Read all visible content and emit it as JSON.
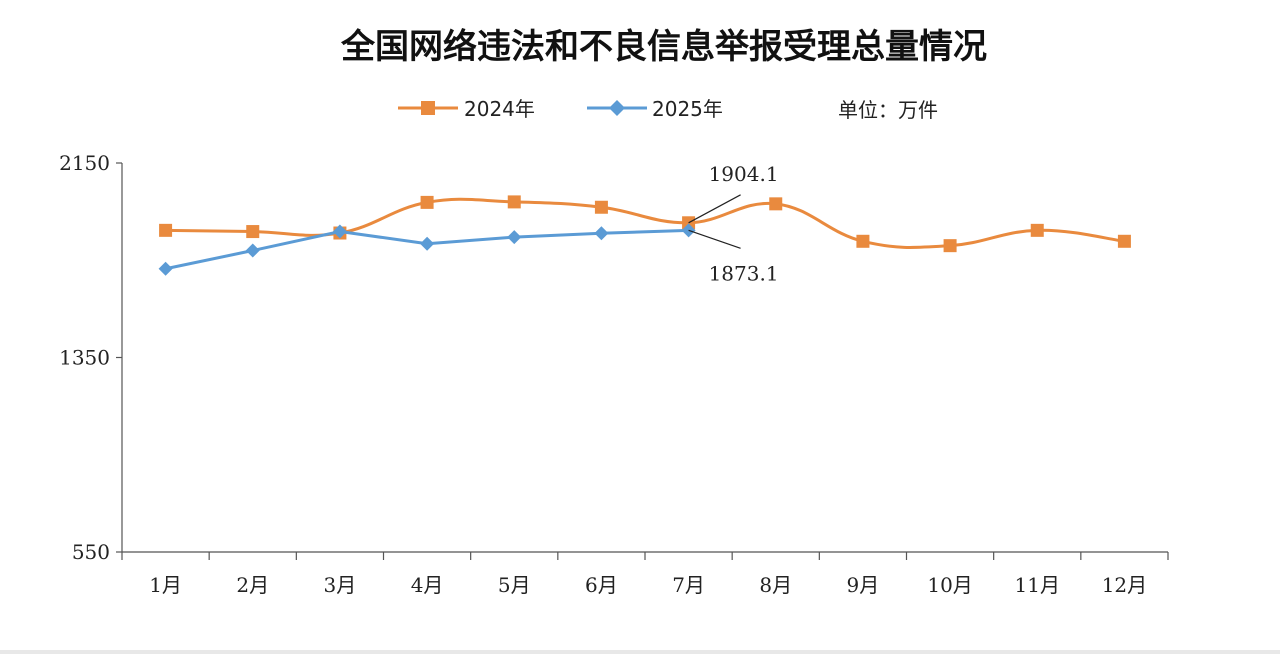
{
  "chart_data": {
    "type": "line",
    "title": "全国网络违法和不良信息举报受理总量情况",
    "unit_label": "单位：万件",
    "categories": [
      "1月",
      "2月",
      "3月",
      "4月",
      "5月",
      "6月",
      "7月",
      "8月",
      "9月",
      "10月",
      "11月",
      "12月"
    ],
    "ylim": [
      550,
      2150
    ],
    "yticks": [
      550,
      1350,
      2150
    ],
    "grid": false,
    "legend_position": "top",
    "series": [
      {
        "name": "2024年",
        "color": "#E98A3E",
        "marker": "square",
        "smooth": true,
        "values": [
          1873,
          1868,
          1862,
          1988,
          1990,
          1968,
          1904.1,
          1982,
          1828,
          1810,
          1873,
          1828
        ]
      },
      {
        "name": "2025年",
        "color": "#5B9BD5",
        "marker": "diamond",
        "smooth": false,
        "values": [
          1715,
          1790,
          1868,
          1818,
          1845,
          1861,
          1873.1,
          null,
          null,
          null,
          null,
          null
        ]
      }
    ],
    "annotations": [
      {
        "text": "1904.1",
        "series": 0,
        "index": 6
      },
      {
        "text": "1873.1",
        "series": 1,
        "index": 6
      }
    ]
  }
}
